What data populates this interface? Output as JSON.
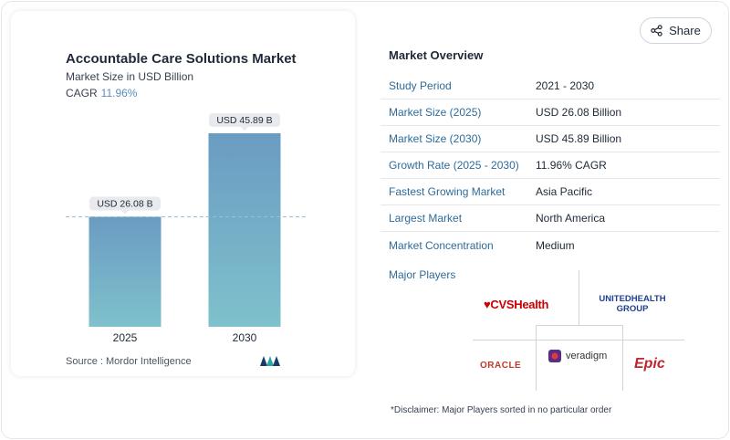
{
  "chart_card": {
    "title": "Accountable Care Solutions Market",
    "subtitle": "Market Size in USD Billion",
    "cagr_label": "CAGR",
    "cagr_value": "11.96%",
    "source": "Source :  Mordor Intelligence"
  },
  "chart_data": {
    "type": "bar",
    "title": "Accountable Care Solutions Market",
    "subtitle": "Market Size in USD Billion",
    "categories": [
      "2025",
      "2030"
    ],
    "values": [
      26.08,
      45.89
    ],
    "data_labels": [
      "USD 26.08 B",
      "USD 45.89 B"
    ],
    "ylim": [
      0,
      45.89
    ],
    "grid": false,
    "reference_line": "dashed at 2025 value",
    "colors": {
      "bar_top": "#6a9cc2",
      "bar_bottom": "#7fc1cc",
      "reference_line": "#9bbfd0"
    }
  },
  "share": {
    "label": "Share",
    "icon": "share-icon"
  },
  "overview": {
    "title": "Market Overview",
    "rows": [
      {
        "key": "Study Period",
        "value": "2021 - 2030"
      },
      {
        "key": "Market Size (2025)",
        "value": "USD 26.08 Billion"
      },
      {
        "key": "Market Size (2030)",
        "value": "USD 45.89 Billion"
      },
      {
        "key": "Growth Rate (2025 - 2030)",
        "value": "11.96% CAGR"
      },
      {
        "key": "Fastest Growing Market",
        "value": "Asia Pacific"
      },
      {
        "key": "Largest Market",
        "value": "North America"
      },
      {
        "key": "Market Concentration",
        "value": "Medium"
      }
    ]
  },
  "players": {
    "label": "Major Players",
    "cvs": "CVSHealth",
    "unitedhealth": "UNITEDHEALTH GROUP",
    "oracle": "ORACLE",
    "veradigm": "veradigm",
    "epic": "Epic"
  },
  "disclaimer": "*Disclaimer: Major Players sorted in no particular order",
  "colors": {
    "accent": "#2e6b9a",
    "cagr": "#5b8db8"
  }
}
